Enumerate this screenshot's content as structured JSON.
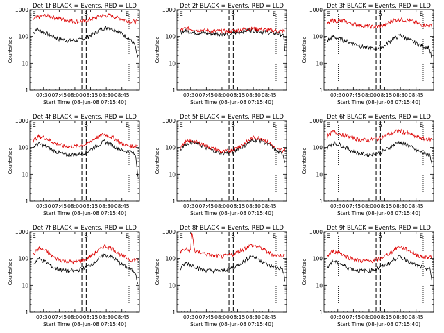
{
  "chart_data": [
    {
      "type": "line",
      "title": "Det 1f BLACK = Events, RED = LLD",
      "xlabel": "Start Time (08-Jun-08 07:15:40)",
      "ylabel": "Counts/sec",
      "yscale": "log",
      "ylim": [
        1,
        1000
      ],
      "yticks": [
        "1",
        "10",
        "100",
        "1000"
      ],
      "xticks": [
        "07:30",
        "07:45",
        "08:00",
        "08:15",
        "08:30",
        "08:45"
      ],
      "markers": [
        "E",
        "S",
        "E"
      ],
      "series": [
        {
          "color": "#000000",
          "x": [
            0,
            0.03,
            0.08,
            0.15,
            0.25,
            0.35,
            0.45,
            0.52,
            0.58,
            0.65,
            0.72,
            0.8,
            0.86,
            0.92,
            0.97,
            1
          ],
          "y": [
            130,
            190,
            160,
            120,
            80,
            70,
            75,
            95,
            130,
            190,
            220,
            170,
            120,
            80,
            50,
            15
          ]
        },
        {
          "color": "#dd0000",
          "x": [
            0,
            0.05,
            0.12,
            0.2,
            0.3,
            0.4,
            0.5,
            0.58,
            0.65,
            0.72,
            0.8,
            0.88,
            0.95,
            1
          ],
          "y": [
            430,
            550,
            600,
            520,
            420,
            370,
            380,
            480,
            600,
            620,
            520,
            420,
            360,
            360
          ]
        }
      ]
    },
    {
      "type": "line",
      "title": "Det 2f BLACK = Events, RED = LLD",
      "xlabel": "Start Time (08-Jun-08 07:15:40)",
      "ylabel": "Counts/sec",
      "yscale": "log",
      "ylim": [
        1,
        1000
      ],
      "yticks": [
        "1",
        "10",
        "100",
        "1000"
      ],
      "xticks": [
        "07:30",
        "07:45",
        "08:00",
        "08:15",
        "08:30",
        "08:45"
      ],
      "markers": [
        "E",
        "S",
        "E"
      ],
      "series": [
        {
          "color": "#000000",
          "x": [
            0,
            0.05,
            0.15,
            0.3,
            0.45,
            0.55,
            0.65,
            0.75,
            0.85,
            0.95,
            0.99,
            1
          ],
          "y": [
            150,
            160,
            140,
            130,
            125,
            140,
            180,
            160,
            140,
            130,
            100,
            30
          ]
        },
        {
          "color": "#dd0000",
          "x": [
            0,
            0.05,
            0.15,
            0.3,
            0.45,
            0.55,
            0.65,
            0.75,
            0.85,
            0.95,
            1
          ],
          "y": [
            170,
            200,
            180,
            160,
            160,
            170,
            200,
            190,
            170,
            160,
            160
          ]
        }
      ]
    },
    {
      "type": "line",
      "title": "Det 3f BLACK = Events, RED = LLD",
      "xlabel": "Start Time (08-Jun-08 07:15:40)",
      "ylabel": "Counts/sec",
      "yscale": "log",
      "ylim": [
        1,
        1000
      ],
      "yticks": [
        "1",
        "10",
        "100",
        "1000"
      ],
      "xticks": [
        "07:30",
        "07:45",
        "08:00",
        "08:15",
        "08:30",
        "08:45"
      ],
      "markers": [
        "E",
        "S",
        "E"
      ],
      "series": [
        {
          "color": "#000000",
          "x": [
            0,
            0.05,
            0.15,
            0.25,
            0.35,
            0.45,
            0.55,
            0.62,
            0.7,
            0.8,
            0.9,
            0.97,
            1
          ],
          "y": [
            70,
            100,
            75,
            55,
            40,
            35,
            45,
            80,
            110,
            70,
            45,
            40,
            15
          ]
        },
        {
          "color": "#dd0000",
          "x": [
            0,
            0.05,
            0.15,
            0.25,
            0.35,
            0.45,
            0.55,
            0.62,
            0.7,
            0.8,
            0.9,
            1
          ],
          "y": [
            300,
            400,
            380,
            300,
            250,
            230,
            260,
            400,
            450,
            380,
            280,
            250
          ]
        }
      ]
    },
    {
      "type": "line",
      "title": "Det 4f BLACK = Events, RED = LLD",
      "xlabel": "Start Time (08-Jun-08 07:15:40)",
      "ylabel": "Counts/sec",
      "yscale": "log",
      "ylim": [
        1,
        1000
      ],
      "yticks": [
        "1",
        "10",
        "100",
        "1000"
      ],
      "xticks": [
        "07:30",
        "07:45",
        "08:00",
        "08:15",
        "08:30",
        "08:45"
      ],
      "markers": [
        "E",
        "S",
        "E"
      ],
      "series": [
        {
          "color": "#000000",
          "x": [
            0,
            0.05,
            0.12,
            0.2,
            0.3,
            0.4,
            0.5,
            0.6,
            0.68,
            0.76,
            0.85,
            0.93,
            0.98,
            1
          ],
          "y": [
            100,
            140,
            110,
            75,
            55,
            55,
            65,
            110,
            170,
            120,
            80,
            70,
            50,
            10
          ]
        },
        {
          "color": "#dd0000",
          "x": [
            0,
            0.05,
            0.12,
            0.2,
            0.3,
            0.4,
            0.5,
            0.6,
            0.68,
            0.76,
            0.85,
            0.93,
            1
          ],
          "y": [
            180,
            260,
            230,
            150,
            110,
            110,
            130,
            230,
            320,
            240,
            140,
            110,
            120
          ]
        }
      ]
    },
    {
      "type": "line",
      "title": "Det 5f BLACK = Events, RED = LLD",
      "xlabel": "Start Time (08-Jun-08 07:15:40)",
      "ylabel": "Counts/sec",
      "yscale": "log",
      "ylim": [
        1,
        1000
      ],
      "yticks": [
        "1",
        "10",
        "100",
        "1000"
      ],
      "xticks": [
        "07:30",
        "07:45",
        "08:00",
        "08:15",
        "08:30",
        "08:45"
      ],
      "markers": [
        "E",
        "S",
        "E"
      ],
      "series": [
        {
          "color": "#000000",
          "x": [
            0,
            0.05,
            0.12,
            0.2,
            0.3,
            0.4,
            0.5,
            0.6,
            0.7,
            0.78,
            0.86,
            0.93,
            0.98,
            1
          ],
          "y": [
            80,
            140,
            160,
            120,
            80,
            60,
            70,
            110,
            200,
            180,
            120,
            70,
            60,
            30
          ]
        },
        {
          "color": "#dd0000",
          "x": [
            0,
            0.05,
            0.12,
            0.2,
            0.3,
            0.4,
            0.5,
            0.6,
            0.7,
            0.78,
            0.86,
            0.93,
            1
          ],
          "y": [
            100,
            160,
            180,
            140,
            95,
            70,
            80,
            130,
            240,
            220,
            140,
            80,
            80
          ]
        }
      ]
    },
    {
      "type": "line",
      "title": "Det 6f BLACK = Events, RED = LLD",
      "xlabel": "Start Time (08-Jun-08 07:15:40)",
      "ylabel": "Counts/sec",
      "yscale": "log",
      "ylim": [
        1,
        1000
      ],
      "yticks": [
        "1",
        "10",
        "100",
        "1000"
      ],
      "xticks": [
        "07:30",
        "07:45",
        "08:00",
        "08:15",
        "08:30",
        "08:45"
      ],
      "markers": [
        "E",
        "S",
        "E"
      ],
      "series": [
        {
          "color": "#000000",
          "x": [
            0,
            0.05,
            0.12,
            0.2,
            0.3,
            0.4,
            0.5,
            0.6,
            0.68,
            0.76,
            0.85,
            0.93,
            0.98,
            1
          ],
          "y": [
            100,
            150,
            130,
            90,
            60,
            55,
            65,
            100,
            160,
            130,
            80,
            60,
            55,
            25
          ]
        },
        {
          "color": "#dd0000",
          "x": [
            0,
            0.05,
            0.12,
            0.2,
            0.3,
            0.4,
            0.5,
            0.6,
            0.68,
            0.76,
            0.85,
            0.93,
            1
          ],
          "y": [
            260,
            380,
            340,
            260,
            200,
            190,
            220,
            330,
            420,
            360,
            250,
            210,
            200
          ]
        }
      ]
    },
    {
      "type": "line",
      "title": "Det 7f BLACK = Events, RED = LLD",
      "xlabel": "Start Time (08-Jun-08 07:15:40)",
      "ylabel": "Counts/sec",
      "yscale": "log",
      "ylim": [
        1,
        1000
      ],
      "yticks": [
        "1",
        "10",
        "100",
        "1000"
      ],
      "xticks": [
        "07:30",
        "07:45",
        "08:00",
        "08:15",
        "08:30",
        "08:45"
      ],
      "markers": [
        "E",
        "S",
        "E"
      ],
      "series": [
        {
          "color": "#000000",
          "x": [
            0,
            0.05,
            0.12,
            0.2,
            0.3,
            0.4,
            0.5,
            0.6,
            0.68,
            0.76,
            0.85,
            0.93,
            0.98,
            1
          ],
          "y": [
            60,
            100,
            75,
            45,
            35,
            35,
            45,
            80,
            140,
            110,
            60,
            40,
            30,
            12
          ]
        },
        {
          "color": "#dd0000",
          "x": [
            0,
            0.05,
            0.12,
            0.2,
            0.3,
            0.4,
            0.5,
            0.6,
            0.68,
            0.76,
            0.85,
            0.93,
            1
          ],
          "y": [
            140,
            240,
            200,
            110,
            80,
            75,
            90,
            170,
            300,
            230,
            130,
            90,
            90
          ]
        }
      ]
    },
    {
      "type": "line",
      "title": "Det 8f BLACK = Events, RED = LLD",
      "xlabel": "Start Time (08-Jun-08 07:15:40)",
      "ylabel": "Counts/sec",
      "yscale": "log",
      "ylim": [
        1,
        1000
      ],
      "yticks": [
        "1",
        "10",
        "100",
        "1000"
      ],
      "xticks": [
        "07:30",
        "07:45",
        "08:00",
        "08:15",
        "08:30",
        "08:45"
      ],
      "markers": [
        "E",
        "S",
        "E"
      ],
      "series": [
        {
          "color": "#000000",
          "x": [
            0,
            0.05,
            0.12,
            0.2,
            0.3,
            0.4,
            0.5,
            0.6,
            0.68,
            0.76,
            0.85,
            0.93,
            0.98,
            1
          ],
          "y": [
            40,
            70,
            55,
            40,
            35,
            35,
            45,
            75,
            130,
            90,
            55,
            45,
            40,
            15
          ]
        },
        {
          "color": "#dd0000",
          "x": [
            0,
            0.05,
            0.1,
            0.11,
            0.14,
            0.2,
            0.3,
            0.4,
            0.5,
            0.6,
            0.68,
            0.76,
            0.85,
            0.93,
            1
          ],
          "y": [
            180,
            220,
            200,
            1000,
            180,
            170,
            130,
            120,
            140,
            220,
            320,
            260,
            160,
            130,
            130
          ]
        }
      ]
    },
    {
      "type": "line",
      "title": "Det 9f BLACK = Events, RED = LLD",
      "xlabel": "Start Time (08-Jun-08 07:15:40)",
      "ylabel": "Counts/sec",
      "yscale": "log",
      "ylim": [
        1,
        1000
      ],
      "yticks": [
        "1",
        "10",
        "100",
        "1000"
      ],
      "xticks": [
        "07:30",
        "07:45",
        "08:00",
        "08:15",
        "08:30",
        "08:45"
      ],
      "markers": [
        "E",
        "S",
        "E"
      ],
      "series": [
        {
          "color": "#000000",
          "x": [
            0,
            0.05,
            0.12,
            0.2,
            0.3,
            0.4,
            0.5,
            0.6,
            0.68,
            0.76,
            0.85,
            0.93,
            0.98,
            1
          ],
          "y": [
            50,
            80,
            65,
            45,
            35,
            35,
            45,
            70,
            120,
            90,
            55,
            45,
            40,
            15
          ]
        },
        {
          "color": "#dd0000",
          "x": [
            0,
            0.05,
            0.12,
            0.2,
            0.3,
            0.4,
            0.5,
            0.6,
            0.68,
            0.76,
            0.85,
            0.93,
            1
          ],
          "y": [
            120,
            190,
            170,
            110,
            85,
            80,
            95,
            160,
            280,
            220,
            140,
            110,
            120
          ]
        }
      ]
    }
  ]
}
